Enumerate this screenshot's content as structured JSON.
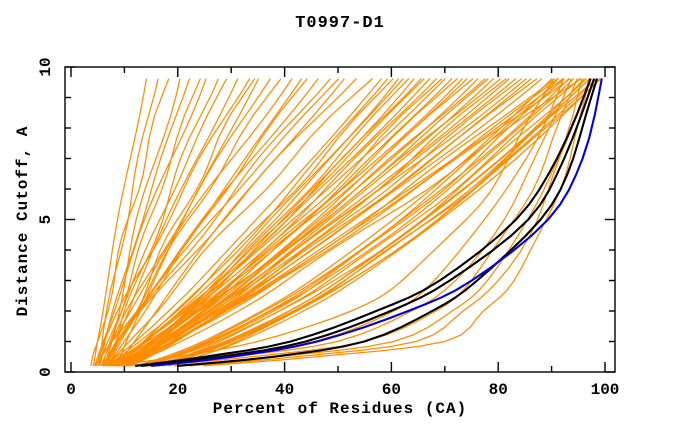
{
  "title": "T0997-D1",
  "axes": {
    "x": {
      "label": "Percent of Residues (CA)",
      "min": 0,
      "max": 100,
      "major_ticks": [
        0,
        20,
        40,
        60,
        80,
        100
      ],
      "minor_ticks": [
        10,
        30,
        50,
        70,
        90
      ],
      "tick_labels": [
        "0",
        "20",
        "40",
        "60",
        "80",
        "100"
      ]
    },
    "y": {
      "label": "Distance Cutoff, A",
      "min": 0,
      "max": 10,
      "major_ticks": [
        0,
        5,
        10
      ],
      "minor_ticks": [
        1,
        2,
        3,
        4,
        6,
        7,
        8,
        9
      ],
      "tick_labels": [
        "0",
        "5",
        "10"
      ]
    }
  },
  "colors": {
    "model_orange": "#ff8c00",
    "reference_black": "#000000",
    "best_blue": "#0000dd",
    "frame": "#000000",
    "background": "#ffffff"
  },
  "chart_data": {
    "type": "line",
    "title": "T0997-D1",
    "xlabel": "Percent of Residues (CA)",
    "ylabel": "Distance Cutoff, A",
    "xlim": [
      0,
      100
    ],
    "ylim": [
      0,
      10
    ],
    "grid": false,
    "legend": false,
    "y_levels": [
      0.2,
      0.5,
      1,
      2,
      3,
      5,
      7,
      9.62
    ],
    "series_groups": [
      {
        "name": "model-curves-orange",
        "color_key": "model_orange",
        "stroke_width": 1.25,
        "curves": [
          [
            4.1,
            4.4,
            4.8,
            5.8,
            6.8,
            8.9,
            11.1,
            14
          ],
          [
            5.2,
            5.4,
            5.9,
            7.0,
            8.0,
            10.4,
            12.8,
            16
          ],
          [
            4.2,
            4.5,
            5.2,
            6.5,
            7.9,
            10.8,
            13.9,
            18
          ],
          [
            6.2,
            6.5,
            7.2,
            8.5,
            9.9,
            12.8,
            15.9,
            20
          ],
          [
            5.2,
            5.7,
            6.4,
            8.0,
            9.7,
            13.3,
            17.0,
            22
          ],
          [
            6.2,
            6.7,
            7.5,
            9.2,
            11.0,
            14.8,
            18.7,
            24
          ],
          [
            4.3,
            4.8,
            5.7,
            7.7,
            9.8,
            14.2,
            18.8,
            25
          ],
          [
            7.3,
            7.8,
            8.7,
            10.6,
            12.5,
            16.7,
            21.1,
            27
          ],
          [
            5.3,
            5.9,
            7.0,
            9.3,
            11.6,
            16.7,
            21.9,
            29
          ],
          [
            6.4,
            7.0,
            8.1,
            10.5,
            12.9,
            18.2,
            23.6,
            31
          ],
          [
            4.4,
            5.1,
            6.4,
            9.2,
            12.0,
            18.1,
            24.4,
            33
          ],
          [
            7.4,
            8.0,
            9.2,
            11.8,
            14.5,
            20.1,
            26.0,
            34
          ],
          [
            8.4,
            9.1,
            10.2,
            12.8,
            15.5,
            21.2,
            27.0,
            35
          ],
          [
            5.5,
            6.2,
            7.7,
            10.7,
            13.9,
            20.6,
            27.6,
            37
          ],
          [
            6.5,
            7.3,
            8.7,
            11.9,
            15.1,
            22.1,
            29.3,
            39
          ],
          [
            4.5,
            5.4,
            7.1,
            10.6,
            14.2,
            22.0,
            30.1,
            41
          ],
          [
            6.5,
            7.4,
            9.0,
            12.8,
            16.6,
            24.6,
            32.8,
            43
          ],
          [
            7.5,
            8.4,
            10.1,
            13.6,
            17.2,
            25.0,
            33.1,
            44
          ],
          [
            5.6,
            6.6,
            8.4,
            12.3,
            16.4,
            25.0,
            33.9,
            46
          ],
          [
            6.6,
            7.6,
            9.5,
            13.5,
            17.6,
            26.5,
            35.6,
            48
          ],
          [
            4.7,
            5.8,
            7.8,
            12.2,
            16.7,
            26.4,
            36.4,
            50
          ],
          [
            8.6,
            9.7,
            11.6,
            15.7,
            19.9,
            28.9,
            38.3,
            51
          ],
          [
            5.7,
            6.9,
            9.0,
            13.5,
            18.3,
            28.4,
            38.8,
            53
          ],
          [
            7.7,
            8.9,
            11.1,
            15.7,
            20.5,
            30.8,
            41.4,
            56
          ],
          [
            6.0,
            8.4,
            11.9,
            18.1,
            24.0,
            34.9,
            45.2,
            58
          ],
          [
            8.0,
            10.3,
            13.7,
            19.9,
            25.7,
            36.4,
            46.4,
            59
          ],
          [
            7.0,
            9.5,
            13.0,
            19.4,
            25.4,
            36.5,
            47.0,
            60
          ],
          [
            9.0,
            11.4,
            14.9,
            21.2,
            27.1,
            37.9,
            48.2,
            61
          ],
          [
            8.1,
            10.5,
            14.2,
            20.7,
            26.8,
            38.1,
            48.7,
            62
          ],
          [
            9.1,
            11.5,
            15.2,
            21.7,
            27.8,
            39.1,
            49.7,
            63
          ],
          [
            10.0,
            12.5,
            16.2,
            22.7,
            28.8,
            40.1,
            50.7,
            64
          ],
          [
            6.7,
            9.7,
            13.9,
            21.4,
            28.0,
            40.1,
            51.3,
            65
          ],
          [
            7.3,
            9.9,
            13.9,
            21.0,
            27.6,
            39.9,
            51.5,
            66
          ],
          [
            8.3,
            10.9,
            14.9,
            22.0,
            28.6,
            40.9,
            52.5,
            67
          ],
          [
            9.3,
            11.9,
            15.9,
            23.0,
            29.6,
            41.9,
            53.5,
            68
          ],
          [
            10.3,
            12.9,
            16.9,
            24.0,
            30.6,
            42.9,
            54.5,
            69
          ],
          [
            6.4,
            9.3,
            13.6,
            21.3,
            28.5,
            41.8,
            54.4,
            70
          ],
          [
            8.0,
            11.2,
            15.8,
            23.8,
            30.9,
            44.1,
            56.2,
            71
          ],
          [
            8.4,
            11.3,
            15.6,
            23.3,
            30.5,
            43.8,
            56.4,
            72
          ],
          [
            9.4,
            12.3,
            16.6,
            24.3,
            31.5,
            44.8,
            57.4,
            73
          ],
          [
            10.4,
            13.3,
            17.6,
            25.3,
            32.5,
            45.8,
            58.4,
            74
          ],
          [
            6.6,
            9.8,
            14.4,
            22.6,
            30.3,
            44.7,
            58.2,
            75
          ],
          [
            8.2,
            11.7,
            16.6,
            25.2,
            32.9,
            47.0,
            60.0,
            76
          ],
          [
            8.6,
            11.8,
            16.4,
            24.6,
            32.3,
            46.7,
            60.2,
            77
          ],
          [
            9.6,
            12.8,
            17.4,
            25.6,
            33.3,
            47.7,
            61.2,
            78
          ],
          [
            10.6,
            13.8,
            18.4,
            26.6,
            34.3,
            48.7,
            62.2,
            79
          ],
          [
            6.8,
            10.2,
            15.1,
            23.9,
            32.2,
            47.5,
            62.0,
            80
          ],
          [
            8.4,
            12.1,
            17.4,
            26.7,
            34.9,
            50.0,
            63.9,
            81
          ],
          [
            8.8,
            12.2,
            17.1,
            25.9,
            34.2,
            49.5,
            64.0,
            82
          ],
          [
            9.8,
            13.2,
            18.1,
            26.9,
            35.2,
            50.5,
            65.0,
            83
          ],
          [
            10.8,
            14.2,
            19.1,
            27.9,
            36.2,
            51.5,
            66.0,
            84
          ],
          [
            7.0,
            10.6,
            15.8,
            25.2,
            34.0,
            50.4,
            65.8,
            85
          ],
          [
            8.6,
            12.6,
            18.2,
            28.1,
            36.8,
            52.9,
            67.8,
            86
          ],
          [
            9.0,
            12.6,
            17.8,
            27.2,
            36.0,
            52.4,
            67.8,
            87
          ],
          [
            10.0,
            13.6,
            18.8,
            28.2,
            37.0,
            53.4,
            68.8,
            88
          ],
          [
            11.0,
            14.6,
            20.0,
            29.5,
            38.4,
            55.0,
            70.6,
            90
          ],
          [
            8.9,
            13.1,
            19.0,
            29.5,
            38.8,
            55.9,
            71.7,
            91
          ],
          [
            9.2,
            13.0,
            18.6,
            28.5,
            37.9,
            55.3,
            71.6,
            92
          ],
          [
            10.2,
            14.0,
            19.6,
            29.5,
            38.9,
            56.3,
            72.6,
            93
          ],
          [
            11.2,
            15.0,
            20.7,
            30.8,
            40.3,
            57.9,
            74.4,
            95
          ],
          [
            11.9,
            17.4,
            24.5,
            35.5,
            44.9,
            60.6,
            74.1,
            90
          ],
          [
            12.9,
            18.4,
            25.5,
            36.5,
            45.9,
            61.6,
            75.1,
            91
          ],
          [
            13.9,
            19.4,
            26.5,
            37.5,
            46.9,
            62.6,
            76.1,
            92
          ],
          [
            12.1,
            17.8,
            25.2,
            36.6,
            46.3,
            62.6,
            76.5,
            93
          ],
          [
            13.1,
            18.8,
            26.2,
            37.6,
            47.3,
            63.6,
            77.5,
            94
          ],
          [
            14.1,
            19.8,
            27.2,
            38.6,
            48.3,
            64.6,
            78.5,
            95
          ],
          [
            13.9,
            20.5,
            28.4,
            40.4,
            50.2,
            66.4,
            80.3,
            96
          ],
          [
            15.1,
            20.8,
            28.2,
            39.6,
            49.3,
            65.6,
            79.5,
            96
          ],
          [
            14.9,
            21.5,
            29.4,
            41.4,
            51.2,
            67.4,
            81.3,
            97
          ],
          [
            16.1,
            21.8,
            29.2,
            40.6,
            50.3,
            66.6,
            80.5,
            97
          ],
          [
            15.9,
            22.5,
            30.4,
            42.4,
            52.2,
            68.4,
            82.3,
            98
          ],
          [
            17.1,
            22.8,
            30.2,
            41.6,
            51.3,
            67.6,
            81.5,
            98
          ],
          [
            16.9,
            23.5,
            31.4,
            43.4,
            53.2,
            69.4,
            83.3,
            99
          ],
          [
            18.1,
            23.8,
            31.2,
            42.6,
            52.3,
            68.6,
            82.5,
            99
          ],
          [
            8.0,
            20.0,
            35.0,
            52.0,
            62.0,
            74.0,
            82.0,
            90
          ],
          [
            10.0,
            26.0,
            45.0,
            60.0,
            68.0,
            78.0,
            85.0,
            92
          ],
          [
            13.0,
            30.0,
            50.0,
            64.0,
            72.0,
            81.0,
            87.0,
            93.5
          ],
          [
            16.0,
            34.0,
            55.0,
            68.0,
            75.0,
            83.0,
            89.0,
            94.5
          ],
          [
            19.0,
            38.0,
            60.0,
            71.0,
            78.0,
            86.0,
            91.0,
            95.5
          ],
          [
            22.0,
            42.0,
            65.0,
            74.0,
            80.0,
            87.0,
            92.0,
            96.5
          ],
          [
            25.0,
            46.0,
            70.0,
            77.0,
            83.0,
            89.0,
            93.5,
            97
          ]
        ]
      },
      {
        "name": "reference-curves-black",
        "color_key": "reference_black",
        "stroke_width": 2.1,
        "curves": [
          [
            12,
            25,
            41,
            57,
            69,
            83.5,
            91,
            97.2
          ],
          [
            13,
            28,
            44,
            60,
            71,
            85.5,
            92.5,
            97.8
          ],
          [
            20,
            38,
            55,
            67.5,
            76,
            88,
            94,
            98.4
          ]
        ]
      },
      {
        "name": "best-model-curve-blue",
        "color_key": "best_blue",
        "stroke_width": 2.1,
        "curves": [
          [
            15,
            30,
            46,
            63,
            75,
            89.5,
            95.8,
            99.3
          ]
        ]
      }
    ]
  }
}
